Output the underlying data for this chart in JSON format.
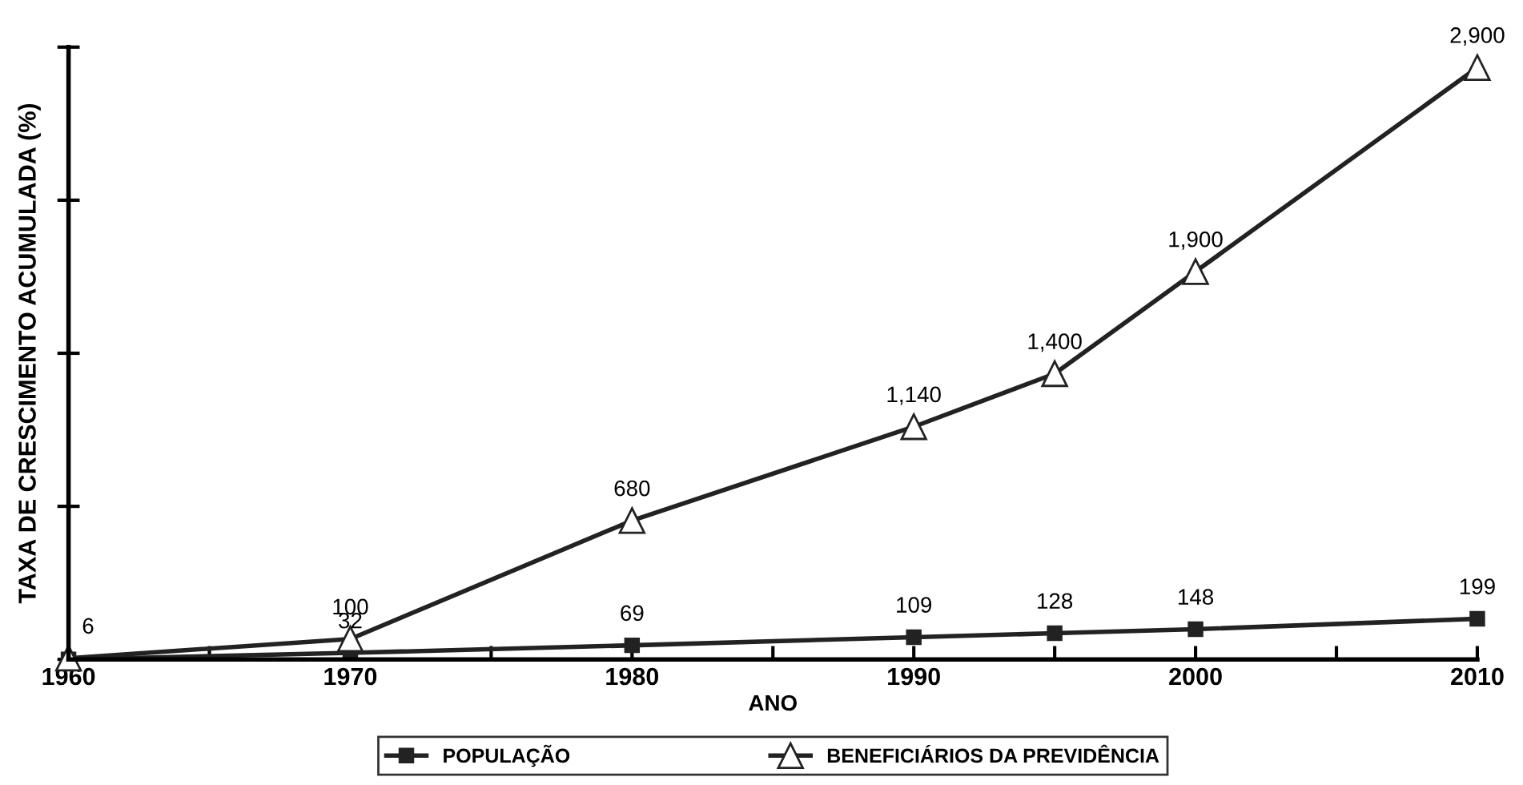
{
  "chart_data": {
    "type": "line",
    "ylabel": "TAXA DE CRESCIMENTO ACUMULADA (%)",
    "xlabel": "ANO",
    "x": [
      1960,
      1970,
      1980,
      1990,
      1995,
      2000,
      2010
    ],
    "series": [
      {
        "name": "POPULAÇÃO",
        "color": "#222222",
        "marker": "square",
        "values": [
          0,
          32,
          69,
          109,
          128,
          148,
          199
        ],
        "value_labels": [
          null,
          "32",
          "69",
          "109",
          "128",
          "148",
          "199"
        ]
      },
      {
        "name": "BENEFICIÁRIOS DA PREVIDÊNCIA",
        "color": "#222222",
        "marker": "triangle",
        "values": [
          6,
          100,
          680,
          1140,
          1400,
          1900,
          2900
        ],
        "value_labels": [
          "6",
          "100",
          "680",
          "1,140",
          "1,400",
          "1,900",
          "2,900"
        ]
      }
    ],
    "xlim": [
      1960,
      2010
    ],
    "xticks": [
      1960,
      {
        "value": 1965,
        "label": null
      },
      1970,
      {
        "value": 1975,
        "label": null
      },
      1980,
      {
        "value": 1985,
        "label": null
      },
      1990,
      {
        "value": 1995,
        "label": null
      },
      2000,
      {
        "value": 2005,
        "label": null
      },
      2010
    ],
    "ylim": [
      0,
      3000
    ],
    "yticks": [
      {
        "value": 0,
        "label": null
      },
      {
        "value": 750,
        "label": null
      },
      {
        "value": 1500,
        "label": null
      },
      {
        "value": 2250,
        "label": null
      },
      {
        "value": 3000,
        "label": null
      }
    ],
    "grid": false,
    "legend": "bottom",
    "line_style": "solid"
  }
}
